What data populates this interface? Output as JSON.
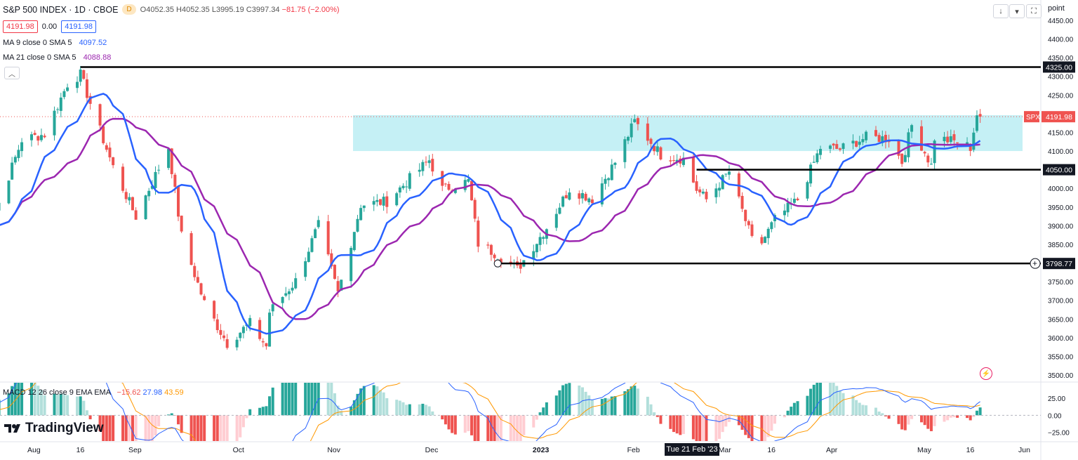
{
  "header": {
    "title": "S&P 500 INDEX · 1D · CBOE",
    "badge": "D",
    "open": "O4052.35",
    "high": "H4052.35",
    "low": "L3995.19",
    "close": "C3997.34",
    "change": "−81.75 (−2.00%)",
    "sell_price": "4191.98",
    "spread": "0.00",
    "buy_price": "4191.98"
  },
  "indicators": {
    "ma9_label": "MA 9 close 0 SMA 5",
    "ma9_value": "4097.52",
    "ma21_label": "MA 21 close 0 SMA 5",
    "ma21_value": "4088.88",
    "macd_label": "MACD 12 26 close 9 EMA EMA",
    "macd_hist": "−15.62",
    "macd_line": "27.98",
    "macd_signal": "43.59"
  },
  "brand": "TradingView",
  "crosshair_date": "Tue 21 Feb '23",
  "price_scale_unit": "point",
  "colors": {
    "up": "#26a69a",
    "down": "#ef5350",
    "ma9": "#2962ff",
    "ma21": "#9c27b0",
    "zone": "#b2ebf2",
    "macd": "#2962ff",
    "signal": "#ff9800"
  },
  "chart_data": {
    "type": "candlestick",
    "symbol": "SPX",
    "last_price": 4191.98,
    "y_ticks": [
      3500,
      3550,
      3600,
      3650,
      3700,
      3750,
      3800,
      3850,
      3900,
      3950,
      4000,
      4050,
      4100,
      4150,
      4200,
      4250,
      4300,
      4350,
      4400,
      4450
    ],
    "y_tick_labels": [
      "3500.00",
      "3550.00",
      "3600.00",
      "3650.00",
      "3700.00",
      "3750.00",
      "3800.00",
      "3850.00",
      "3900.00",
      "3950.00",
      "4000.00",
      "4050.00",
      "4100.00",
      "4150.00",
      "4200.00",
      "4250.00",
      "4300.00",
      "4350.00",
      "4400.00",
      "4450.00"
    ],
    "ylim": [
      3490,
      4500
    ],
    "x_labels": [
      {
        "label": "Aug",
        "date": "2022-08-01"
      },
      {
        "label": "16",
        "date": "2022-08-16"
      },
      {
        "label": "Sep",
        "date": "2022-09-01"
      },
      {
        "label": "Oct",
        "date": "2022-10-03"
      },
      {
        "label": "Nov",
        "date": "2022-11-01"
      },
      {
        "label": "Dec",
        "date": "2022-12-01"
      },
      {
        "label": "2023",
        "date": "2023-01-03"
      },
      {
        "label": "Feb",
        "date": "2023-02-01"
      },
      {
        "label": "Mar",
        "date": "2023-03-01"
      },
      {
        "label": "16",
        "date": "2023-03-16"
      },
      {
        "label": "Apr",
        "date": "2023-04-03"
      },
      {
        "label": "May",
        "date": "2023-05-01"
      },
      {
        "label": "16",
        "date": "2023-05-16"
      },
      {
        "label": "Jun",
        "date": "2023-06-01"
      }
    ],
    "x_range": [
      "2022-07-15",
      "2023-06-03"
    ],
    "closes": [
      {
        "d": "2022-07-15",
        "c": 3863
      },
      {
        "d": "2022-07-22",
        "c": 3961
      },
      {
        "d": "2022-07-29",
        "c": 4130
      },
      {
        "d": "2022-08-05",
        "c": 4145
      },
      {
        "d": "2022-08-12",
        "c": 4280
      },
      {
        "d": "2022-08-16",
        "c": 4305
      },
      {
        "d": "2022-08-19",
        "c": 4228
      },
      {
        "d": "2022-08-26",
        "c": 4057
      },
      {
        "d": "2022-09-02",
        "c": 3924
      },
      {
        "d": "2022-09-12",
        "c": 4110
      },
      {
        "d": "2022-09-16",
        "c": 3873
      },
      {
        "d": "2022-09-23",
        "c": 3693
      },
      {
        "d": "2022-09-30",
        "c": 3585
      },
      {
        "d": "2022-10-07",
        "c": 3639
      },
      {
        "d": "2022-10-12",
        "c": 3577
      },
      {
        "d": "2022-10-13",
        "c": 3669
      },
      {
        "d": "2022-10-21",
        "c": 3752
      },
      {
        "d": "2022-10-28",
        "c": 3901
      },
      {
        "d": "2022-11-03",
        "c": 3720
      },
      {
        "d": "2022-11-10",
        "c": 3956
      },
      {
        "d": "2022-11-18",
        "c": 3965
      },
      {
        "d": "2022-11-25",
        "c": 4026
      },
      {
        "d": "2022-12-01",
        "c": 4076
      },
      {
        "d": "2022-12-05",
        "c": 3998
      },
      {
        "d": "2022-12-13",
        "c": 4019
      },
      {
        "d": "2022-12-16",
        "c": 3852
      },
      {
        "d": "2022-12-22",
        "c": 3822
      },
      {
        "d": "2022-12-28",
        "c": 3783
      },
      {
        "d": "2023-01-06",
        "c": 3895
      },
      {
        "d": "2023-01-13",
        "c": 3999
      },
      {
        "d": "2023-01-20",
        "c": 3972
      },
      {
        "d": "2023-01-27",
        "c": 4070
      },
      {
        "d": "2023-02-02",
        "c": 4179
      },
      {
        "d": "2023-02-10",
        "c": 4090
      },
      {
        "d": "2023-02-17",
        "c": 4079
      },
      {
        "d": "2023-02-21",
        "c": 3997
      },
      {
        "d": "2023-02-24",
        "c": 3970
      },
      {
        "d": "2023-03-03",
        "c": 4045
      },
      {
        "d": "2023-03-10",
        "c": 3861
      },
      {
        "d": "2023-03-13",
        "c": 3855
      },
      {
        "d": "2023-03-17",
        "c": 3916
      },
      {
        "d": "2023-03-24",
        "c": 3970
      },
      {
        "d": "2023-03-31",
        "c": 4109
      },
      {
        "d": "2023-04-06",
        "c": 4105
      },
      {
        "d": "2023-04-14",
        "c": 4137
      },
      {
        "d": "2023-04-21",
        "c": 4133
      },
      {
        "d": "2023-04-25",
        "c": 4071
      },
      {
        "d": "2023-04-28",
        "c": 4169
      },
      {
        "d": "2023-05-04",
        "c": 4061
      },
      {
        "d": "2023-05-05",
        "c": 4136
      },
      {
        "d": "2023-05-12",
        "c": 4124
      },
      {
        "d": "2023-05-16",
        "c": 4110
      },
      {
        "d": "2023-05-18",
        "c": 4198
      },
      {
        "d": "2023-05-19",
        "c": 4191.98
      }
    ],
    "resistance_zone": [
      4100,
      4196
    ],
    "horizontal_levels": [
      {
        "price": 4325,
        "label": "4325.00",
        "from": "2022-08-16"
      },
      {
        "price": 4050,
        "label": "4050.00",
        "from": "2023-02-21"
      },
      {
        "price": 3798.77,
        "label": "3798.77",
        "from": "2022-12-22"
      }
    ],
    "macd_ticks": [
      {
        "v": 25,
        "label": "25.00"
      },
      {
        "v": 0,
        "label": "0.00"
      },
      {
        "v": -25,
        "label": "−25.00"
      }
    ],
    "macd_ylim": [
      -38,
      48
    ]
  }
}
